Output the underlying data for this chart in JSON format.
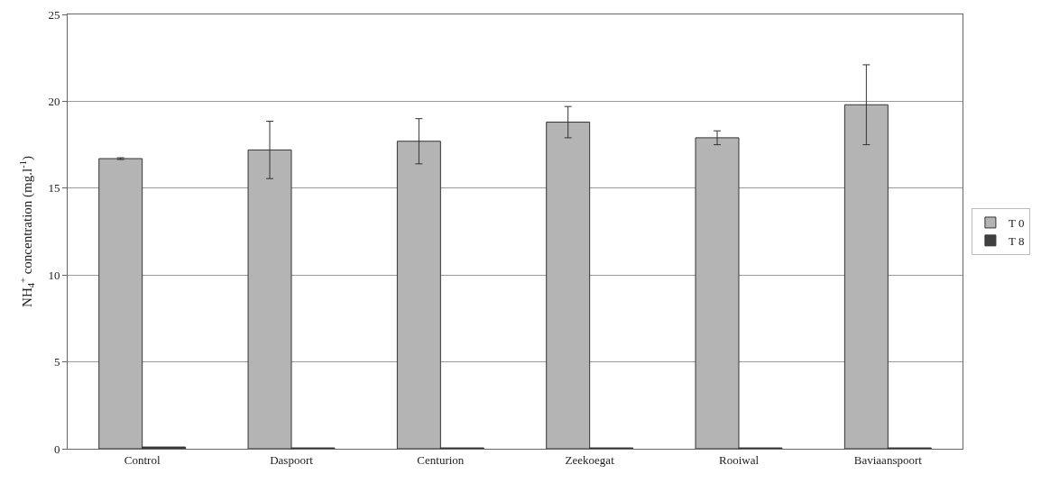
{
  "chart_data": {
    "type": "bar",
    "ylabel": "NH$_{4}$$^{+}$ concentration (mg.l$^{-1}$)",
    "categories": [
      "Control",
      "Daspoort",
      "Centurion",
      "Zeekoegat",
      "Rooiwal",
      "Baviaanspoort"
    ],
    "series": [
      {
        "name": "T 0",
        "color": "#b4b4b4",
        "values": [
          16.7,
          17.2,
          17.7,
          18.8,
          17.9,
          19.8
        ],
        "errors": [
          0.05,
          1.65,
          1.3,
          0.9,
          0.4,
          2.3
        ]
      },
      {
        "name": "T 8",
        "color": "#404040",
        "values": [
          0.1,
          0.05,
          0.05,
          0.05,
          0.05,
          0.05
        ]
      }
    ],
    "ylim": [
      0,
      25
    ],
    "yticks": [
      0,
      5,
      10,
      15,
      20,
      25
    ],
    "grid": "y",
    "legend": "right"
  }
}
